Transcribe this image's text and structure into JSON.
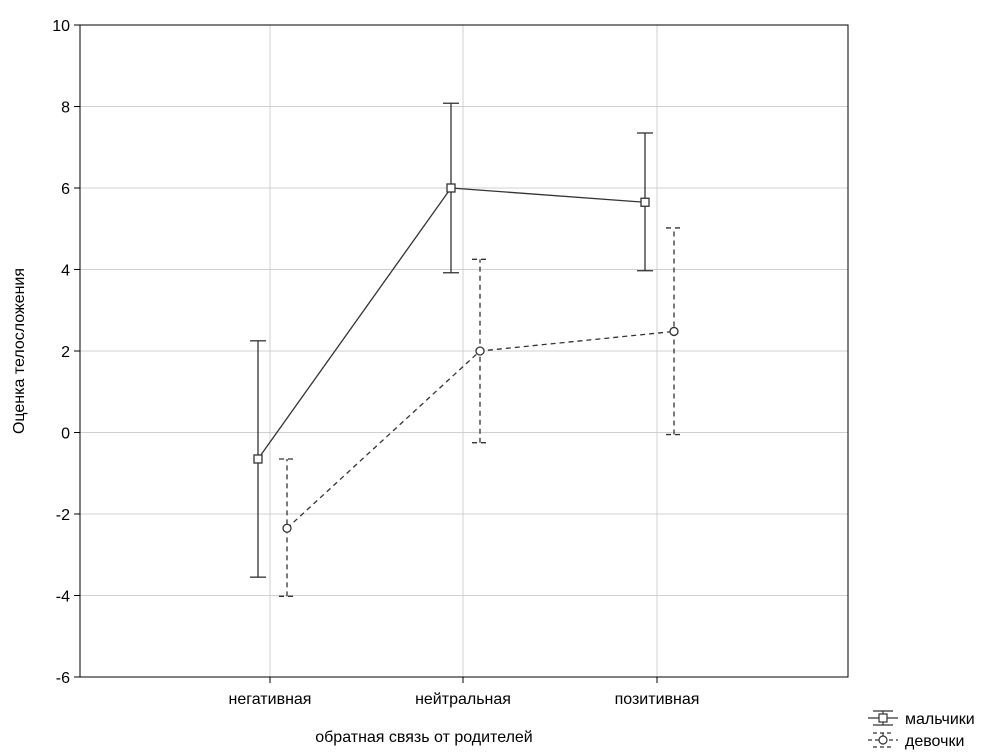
{
  "chart_data": {
    "type": "line",
    "title": "",
    "xlabel": "обратная связь от родителей",
    "ylabel": "Оценка телосложения",
    "categories": [
      "негативная",
      "нейтральная",
      "позитивная"
    ],
    "ylim": [
      -6,
      10
    ],
    "yticks": [
      "10",
      "8",
      "6",
      "4",
      "2",
      "0",
      "-2",
      "-4",
      "-6"
    ],
    "grid": true,
    "legend_position": "bottom-right, outside plot",
    "series": [
      {
        "name": "мальчики",
        "values": [
          -0.65,
          6.0,
          5.65
        ],
        "lower": [
          -3.55,
          3.92,
          3.97
        ],
        "upper": [
          2.25,
          8.08,
          7.35
        ],
        "line_style": "solid",
        "marker": "square",
        "color": "#333333"
      },
      {
        "name": "девочки",
        "values": [
          -2.35,
          2.0,
          2.48
        ],
        "lower": [
          -4.02,
          -0.25,
          -0.05
        ],
        "upper": [
          -0.65,
          4.25,
          5.02
        ],
        "line_style": "dashed",
        "marker": "circle",
        "color": "#333333"
      }
    ]
  }
}
